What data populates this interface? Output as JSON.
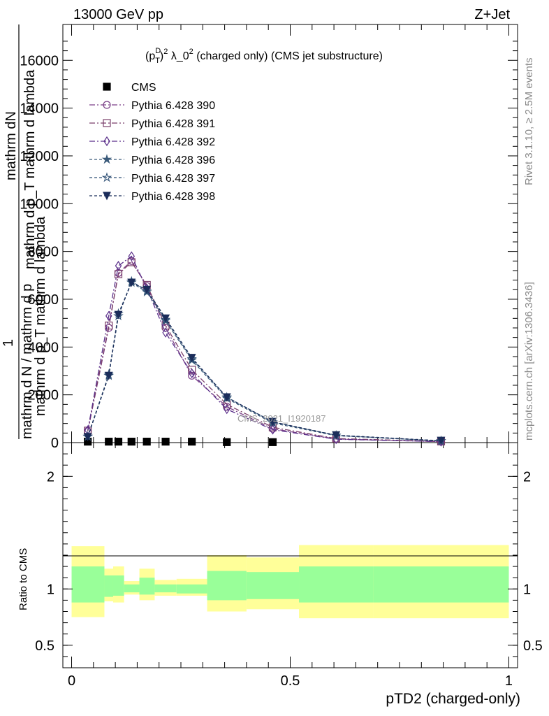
{
  "header": {
    "left_label": "13000 GeV pp",
    "right_label": "Z+Jet"
  },
  "title_main": "(p",
  "title_sup_D": "D",
  "title_sub_T": "T",
  "title_sup_2": "2",
  "title_rest": " λ_0",
  "title_sup_2b": "2",
  "title_tail": " (charged only) (CMS jet substructure)",
  "ylabel_top": {
    "line1": "mathrm dN",
    "line2": "mathrm d p_T mathrm d lambda"
  },
  "ylabel_full": {
    "numerator": "1",
    "denominator_line1": "mathrm d N / mathrm d p",
    "denominator_line2": "mathrm d p_T mathrm d lambda"
  },
  "watermark": "CMS_2021_I1920187",
  "side_right_top": "Rivet 3.1.10, ≥ 2.5M events",
  "side_right_bottom": "mcplots.cern.ch [arXiv:1306.3436]",
  "ratio_ylabel": "Ratio to CMS",
  "xlabel": "pTD2 (charged-only)",
  "colors": {
    "s390": "#7a3f87",
    "s391": "#7a3f6a",
    "s392": "#5a2f8a",
    "s396": "#3a5a7a",
    "s397": "#2e4f74",
    "s398": "#1b2d5a",
    "band_outer": "#ffff99",
    "band_inner": "#99ff99"
  },
  "chart_data": {
    "type": "line",
    "x_edges": [
      0.0,
      0.075,
      0.095,
      0.12,
      0.155,
      0.19,
      0.24,
      0.31,
      0.4,
      0.52,
      0.69,
      1.0
    ],
    "x": [
      0.037,
      0.085,
      0.107,
      0.137,
      0.172,
      0.215,
      0.275,
      0.355,
      0.46,
      0.605,
      0.845
    ],
    "ylim": [
      0,
      17500
    ],
    "xlim": [
      -0.02,
      1.02
    ],
    "yticks": [
      0,
      2000,
      4000,
      6000,
      8000,
      10000,
      12000,
      14000,
      16000
    ],
    "xticks": [
      "0",
      "0.5",
      "1"
    ],
    "series": [
      {
        "name": "CMS",
        "values": [
          40,
          40,
          40,
          40,
          40,
          40,
          40,
          20,
          20,
          0,
          0
        ]
      },
      {
        "name": "Pythia 6.428 390",
        "values": [
          480,
          4800,
          7100,
          7600,
          6550,
          4800,
          2800,
          1500,
          580,
          150,
          40
        ]
      },
      {
        "name": "Pythia 6.428 391",
        "values": [
          500,
          4900,
          7050,
          7550,
          6600,
          4900,
          3050,
          1600,
          640,
          170,
          50
        ]
      },
      {
        "name": "Pythia 6.428 392",
        "values": [
          520,
          5300,
          7400,
          7800,
          6450,
          4600,
          2900,
          1400,
          540,
          140,
          40
        ]
      },
      {
        "name": "Pythia 6.428 396",
        "values": [
          260,
          2850,
          5400,
          6700,
          6300,
          5100,
          3450,
          1850,
          820,
          290,
          70
        ]
      },
      {
        "name": "Pythia 6.428 397",
        "values": [
          250,
          2800,
          5300,
          6750,
          6350,
          5150,
          3500,
          1900,
          860,
          300,
          70
        ]
      },
      {
        "name": "Pythia 6.428 398",
        "values": [
          240,
          2800,
          5350,
          6700,
          6400,
          5200,
          3550,
          1900,
          870,
          310,
          80
        ]
      }
    ],
    "ratio": {
      "ylim": [
        0.3,
        2.3
      ],
      "yticks": [
        "0.5",
        "1",
        "2"
      ],
      "band_outer": [
        [
          0.75,
          1.38
        ],
        [
          0.89,
          1.18
        ],
        [
          0.88,
          1.2
        ],
        [
          0.95,
          1.07
        ],
        [
          0.9,
          1.18
        ],
        [
          0.94,
          1.08
        ],
        [
          0.94,
          1.09
        ],
        [
          0.8,
          1.3
        ],
        [
          0.82,
          1.28
        ],
        [
          0.74,
          1.39
        ],
        [
          0.74,
          1.39
        ]
      ],
      "band_inner": [
        [
          0.88,
          1.2
        ],
        [
          0.93,
          1.12
        ],
        [
          0.94,
          1.12
        ],
        [
          0.97,
          1.04
        ],
        [
          0.95,
          1.1
        ],
        [
          0.97,
          1.04
        ],
        [
          0.96,
          1.04
        ],
        [
          0.9,
          1.16
        ],
        [
          0.91,
          1.15
        ],
        [
          0.88,
          1.2
        ],
        [
          0.88,
          1.2
        ]
      ]
    }
  }
}
